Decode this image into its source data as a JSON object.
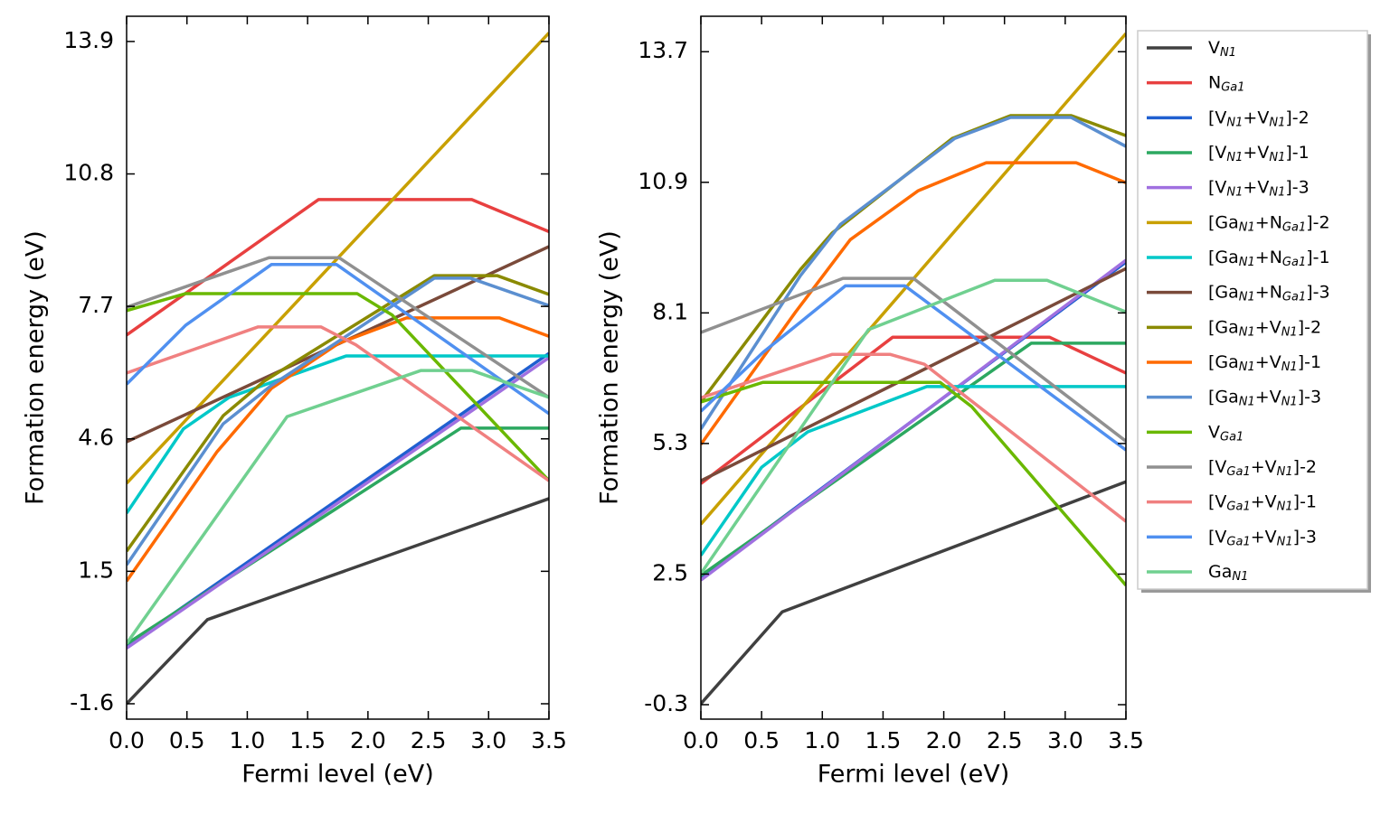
{
  "chart_data": [
    {
      "type": "line",
      "xlabel": "Fermi level (eV)",
      "ylabel": "Formation energy (eV)",
      "xlim": [
        0,
        3.5
      ],
      "ylim": [
        -1.96,
        14.49
      ],
      "xticks": [
        {
          "value": 0,
          "label": "0.0"
        },
        0.5,
        {
          "value": 1,
          "label": "1.0"
        },
        1.5,
        {
          "value": 2,
          "label": "2.0"
        },
        2.5,
        {
          "value": 3,
          "label": "3.0"
        },
        3.5
      ],
      "yticks": [
        -1.6,
        1.5,
        4.6,
        7.7,
        10.8,
        13.9
      ],
      "series": [
        {
          "color": "#404040",
          "x": [
            0,
            0.67,
            3.5
          ],
          "values": [
            -1.6,
            0.37,
            3.2
          ]
        },
        {
          "color": "#e84040",
          "x": [
            0,
            1.59,
            2.86,
            3.5
          ],
          "values": [
            7.03,
            10.2,
            10.2,
            9.45
          ]
        },
        {
          "color": "#1f5fd0",
          "x": [
            0,
            3.5
          ],
          "values": [
            -0.25,
            6.6
          ]
        },
        {
          "color": "#2ca860",
          "x": [
            0,
            2.77,
            3.5
          ],
          "values": [
            -0.2,
            4.85,
            4.85
          ]
        },
        {
          "color": "#a070e0",
          "x": [
            0,
            3.5
          ],
          "values": [
            -0.3,
            6.5
          ]
        },
        {
          "color": "#c8a000",
          "x": [
            0,
            3.5
          ],
          "values": [
            3.56,
            14.1
          ]
        },
        {
          "color": "#00c8c8",
          "x": [
            0,
            0.47,
            0.85,
            1.82,
            3.5
          ],
          "values": [
            2.86,
            4.83,
            5.57,
            6.54,
            6.54
          ]
        },
        {
          "color": "#7a4a3a",
          "x": [
            0,
            3.5
          ],
          "values": [
            4.53,
            9.1
          ]
        },
        {
          "color": "#8a8a00",
          "x": [
            0,
            0.8,
            1.14,
            2.55,
            3.07,
            3.5
          ],
          "values": [
            1.97,
            5.14,
            5.95,
            8.42,
            8.42,
            7.98
          ]
        },
        {
          "color": "#ff6a00",
          "x": [
            0,
            0.75,
            1.2,
            1.76,
            2.32,
            3.09,
            3.5
          ],
          "values": [
            1.27,
            4.3,
            5.78,
            6.84,
            7.43,
            7.43,
            7.0
          ]
        },
        {
          "color": "#5b8fd0",
          "x": [
            0,
            0.8,
            1.2,
            2.55,
            2.85,
            3.5
          ],
          "values": [
            1.65,
            4.95,
            5.85,
            8.36,
            8.36,
            7.72
          ]
        },
        {
          "color": "#6ab800",
          "x": [
            0,
            0.49,
            1.91,
            2.2,
            3.5
          ],
          "values": [
            7.6,
            8.0,
            8.0,
            7.5,
            3.62
          ]
        },
        {
          "color": "#909090",
          "x": [
            0,
            1.18,
            1.76,
            3.5
          ],
          "values": [
            7.68,
            8.84,
            8.84,
            5.57
          ]
        },
        {
          "color": "#f08080",
          "x": [
            0,
            1.09,
            1.61,
            1.9,
            3.5
          ],
          "values": [
            6.14,
            7.22,
            7.22,
            6.8,
            3.62
          ]
        },
        {
          "color": "#5090f0",
          "x": [
            0,
            0.49,
            1.2,
            1.74,
            3.5
          ],
          "values": [
            5.88,
            7.26,
            8.68,
            8.68,
            5.19
          ]
        },
        {
          "color": "#70d090",
          "x": [
            0,
            1.33,
            2.44,
            2.86,
            3.5
          ],
          "values": [
            -0.19,
            5.12,
            6.2,
            6.2,
            5.57
          ]
        }
      ]
    },
    {
      "type": "line",
      "xlabel": "Fermi level (eV)",
      "ylabel": "Formation energy (eV)",
      "xlim": [
        0,
        3.5
      ],
      "ylim": [
        -0.61,
        14.46
      ],
      "legend": "outside right",
      "xticks": [
        {
          "value": 0,
          "label": "0.0"
        },
        0.5,
        {
          "value": 1,
          "label": "1.0"
        },
        1.5,
        {
          "value": 2,
          "label": "2.0"
        },
        2.5,
        {
          "value": 3,
          "label": "3.0"
        },
        3.5
      ],
      "yticks": [
        -0.3,
        2.5,
        5.3,
        8.1,
        10.9,
        13.7
      ],
      "series": [
        {
          "name": "V$_{N1}$",
          "color": "#404040",
          "x": [
            0,
            0.67,
            3.5
          ],
          "values": [
            -0.28,
            1.69,
            4.48
          ]
        },
        {
          "name": "N$_{Ga1}$",
          "color": "#e84040",
          "x": [
            0,
            1.58,
            2.87,
            3.5
          ],
          "values": [
            4.44,
            7.58,
            7.58,
            6.81
          ]
        },
        {
          "name": "[V$_{N1}$+V$_{N1}$]-2",
          "color": "#1f5fd0",
          "x": [
            0,
            3.5
          ],
          "values": [
            2.41,
            9.19
          ]
        },
        {
          "name": "[V$_{N1}$+V$_{N1}$]-1",
          "color": "#2ca860",
          "x": [
            0,
            2.72,
            3.5
          ],
          "values": [
            2.47,
            7.45,
            7.45
          ]
        },
        {
          "name": "[V$_{N1}$+V$_{N1}$]-3",
          "color": "#a070e0",
          "x": [
            0,
            3.5
          ],
          "values": [
            2.37,
            9.23
          ]
        },
        {
          "name": "[Ga$_{N1}$+N$_{Ga1}$]-2",
          "color": "#c8a000",
          "x": [
            0,
            3.5
          ],
          "values": [
            3.57,
            14.09
          ]
        },
        {
          "name": "[Ga$_{N1}$+N$_{Ga1}$]-1",
          "color": "#00c8c8",
          "x": [
            0,
            0.5,
            0.88,
            1.86,
            3.5
          ],
          "values": [
            2.9,
            4.79,
            5.55,
            6.52,
            6.52
          ]
        },
        {
          "name": "[Ga$_{N1}$+N$_{Ga1}$]-3",
          "color": "#7a4a3a",
          "x": [
            0,
            3.5
          ],
          "values": [
            4.5,
            9.05
          ]
        },
        {
          "name": "[Ga$_{N1}$+V$_{N1}$]-2",
          "color": "#8a8a00",
          "x": [
            0,
            0.82,
            1.08,
            2.07,
            2.55,
            3.05,
            3.5
          ],
          "values": [
            6.19,
            9.03,
            9.81,
            11.84,
            12.33,
            12.33,
            11.9
          ]
        },
        {
          "name": "[Ga$_{N1}$+V$_{N1}$]-1",
          "color": "#ff6a00",
          "x": [
            0,
            0.78,
            1.23,
            1.79,
            2.35,
            3.09,
            3.5
          ],
          "values": [
            5.28,
            8.12,
            9.67,
            10.72,
            11.32,
            11.32,
            10.89
          ]
        },
        {
          "name": "[Ga$_{N1}$+V$_{N1}$]-3",
          "color": "#5b8fd0",
          "x": [
            0,
            0.82,
            1.15,
            2.09,
            2.55,
            3.05,
            3.5
          ],
          "values": [
            5.61,
            8.9,
            10.0,
            11.84,
            12.29,
            12.29,
            11.67
          ]
        },
        {
          "name": "V$_{Ga1}$",
          "color": "#6ab800",
          "x": [
            0,
            0.51,
            1.97,
            2.23,
            3.5
          ],
          "values": [
            6.19,
            6.61,
            6.61,
            6.09,
            2.26
          ]
        },
        {
          "name": "[V$_{Ga1}$+V$_{N1}$]-2",
          "color": "#909090",
          "x": [
            0,
            1.17,
            1.75,
            3.5
          ],
          "values": [
            7.68,
            8.84,
            8.84,
            5.35
          ]
        },
        {
          "name": "[V$_{Ga1}$+V$_{N1}$]-1",
          "color": "#f08080",
          "x": [
            0,
            1.08,
            1.56,
            1.84,
            3.5
          ],
          "values": [
            6.28,
            7.21,
            7.21,
            7.0,
            3.63
          ]
        },
        {
          "name": "[V$_{Ga1}$+V$_{N1}$]-3",
          "color": "#5090f0",
          "x": [
            0,
            0.51,
            1.19,
            1.68,
            3.5
          ],
          "values": [
            5.99,
            7.25,
            8.68,
            8.68,
            5.16
          ]
        },
        {
          "name": "Ga$_{N1}$",
          "color": "#70d090",
          "x": [
            0,
            1.38,
            2.42,
            2.85,
            3.5
          ],
          "values": [
            2.51,
            7.74,
            8.8,
            8.8,
            8.12
          ]
        }
      ]
    }
  ]
}
